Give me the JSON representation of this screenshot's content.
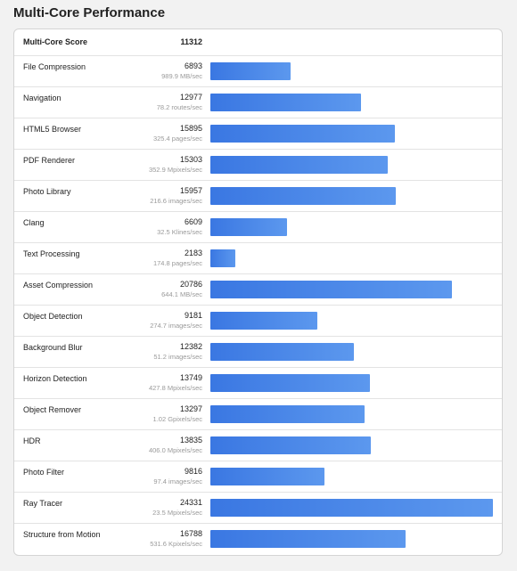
{
  "title": "Multi-Core Performance",
  "score": {
    "label": "Multi-Core Score",
    "value": "11312"
  },
  "max_bar_value": 24331,
  "benchmarks": [
    {
      "name": "File Compression",
      "score": 6893,
      "rate": "989.9 MB/sec"
    },
    {
      "name": "Navigation",
      "score": 12977,
      "rate": "78.2 routes/sec"
    },
    {
      "name": "HTML5 Browser",
      "score": 15895,
      "rate": "325.4 pages/sec"
    },
    {
      "name": "PDF Renderer",
      "score": 15303,
      "rate": "352.9 Mpixels/sec"
    },
    {
      "name": "Photo Library",
      "score": 15957,
      "rate": "216.6 images/sec"
    },
    {
      "name": "Clang",
      "score": 6609,
      "rate": "32.5 Klines/sec"
    },
    {
      "name": "Text Processing",
      "score": 2183,
      "rate": "174.8 pages/sec"
    },
    {
      "name": "Asset Compression",
      "score": 20786,
      "rate": "644.1 MB/sec"
    },
    {
      "name": "Object Detection",
      "score": 9181,
      "rate": "274.7 images/sec"
    },
    {
      "name": "Background Blur",
      "score": 12382,
      "rate": "51.2 images/sec"
    },
    {
      "name": "Horizon Detection",
      "score": 13749,
      "rate": "427.8 Mpixels/sec"
    },
    {
      "name": "Object Remover",
      "score": 13297,
      "rate": "1.02 Gpixels/sec"
    },
    {
      "name": "HDR",
      "score": 13835,
      "rate": "406.0 Mpixels/sec"
    },
    {
      "name": "Photo Filter",
      "score": 9816,
      "rate": "97.4 images/sec"
    },
    {
      "name": "Ray Tracer",
      "score": 24331,
      "rate": "23.5 Mpixels/sec"
    },
    {
      "name": "Structure from Motion",
      "score": 16788,
      "rate": "531.6 Kpixels/sec"
    }
  ],
  "colors": {
    "bar_start": "#3a77e2",
    "bar_end": "#5c98ee"
  }
}
